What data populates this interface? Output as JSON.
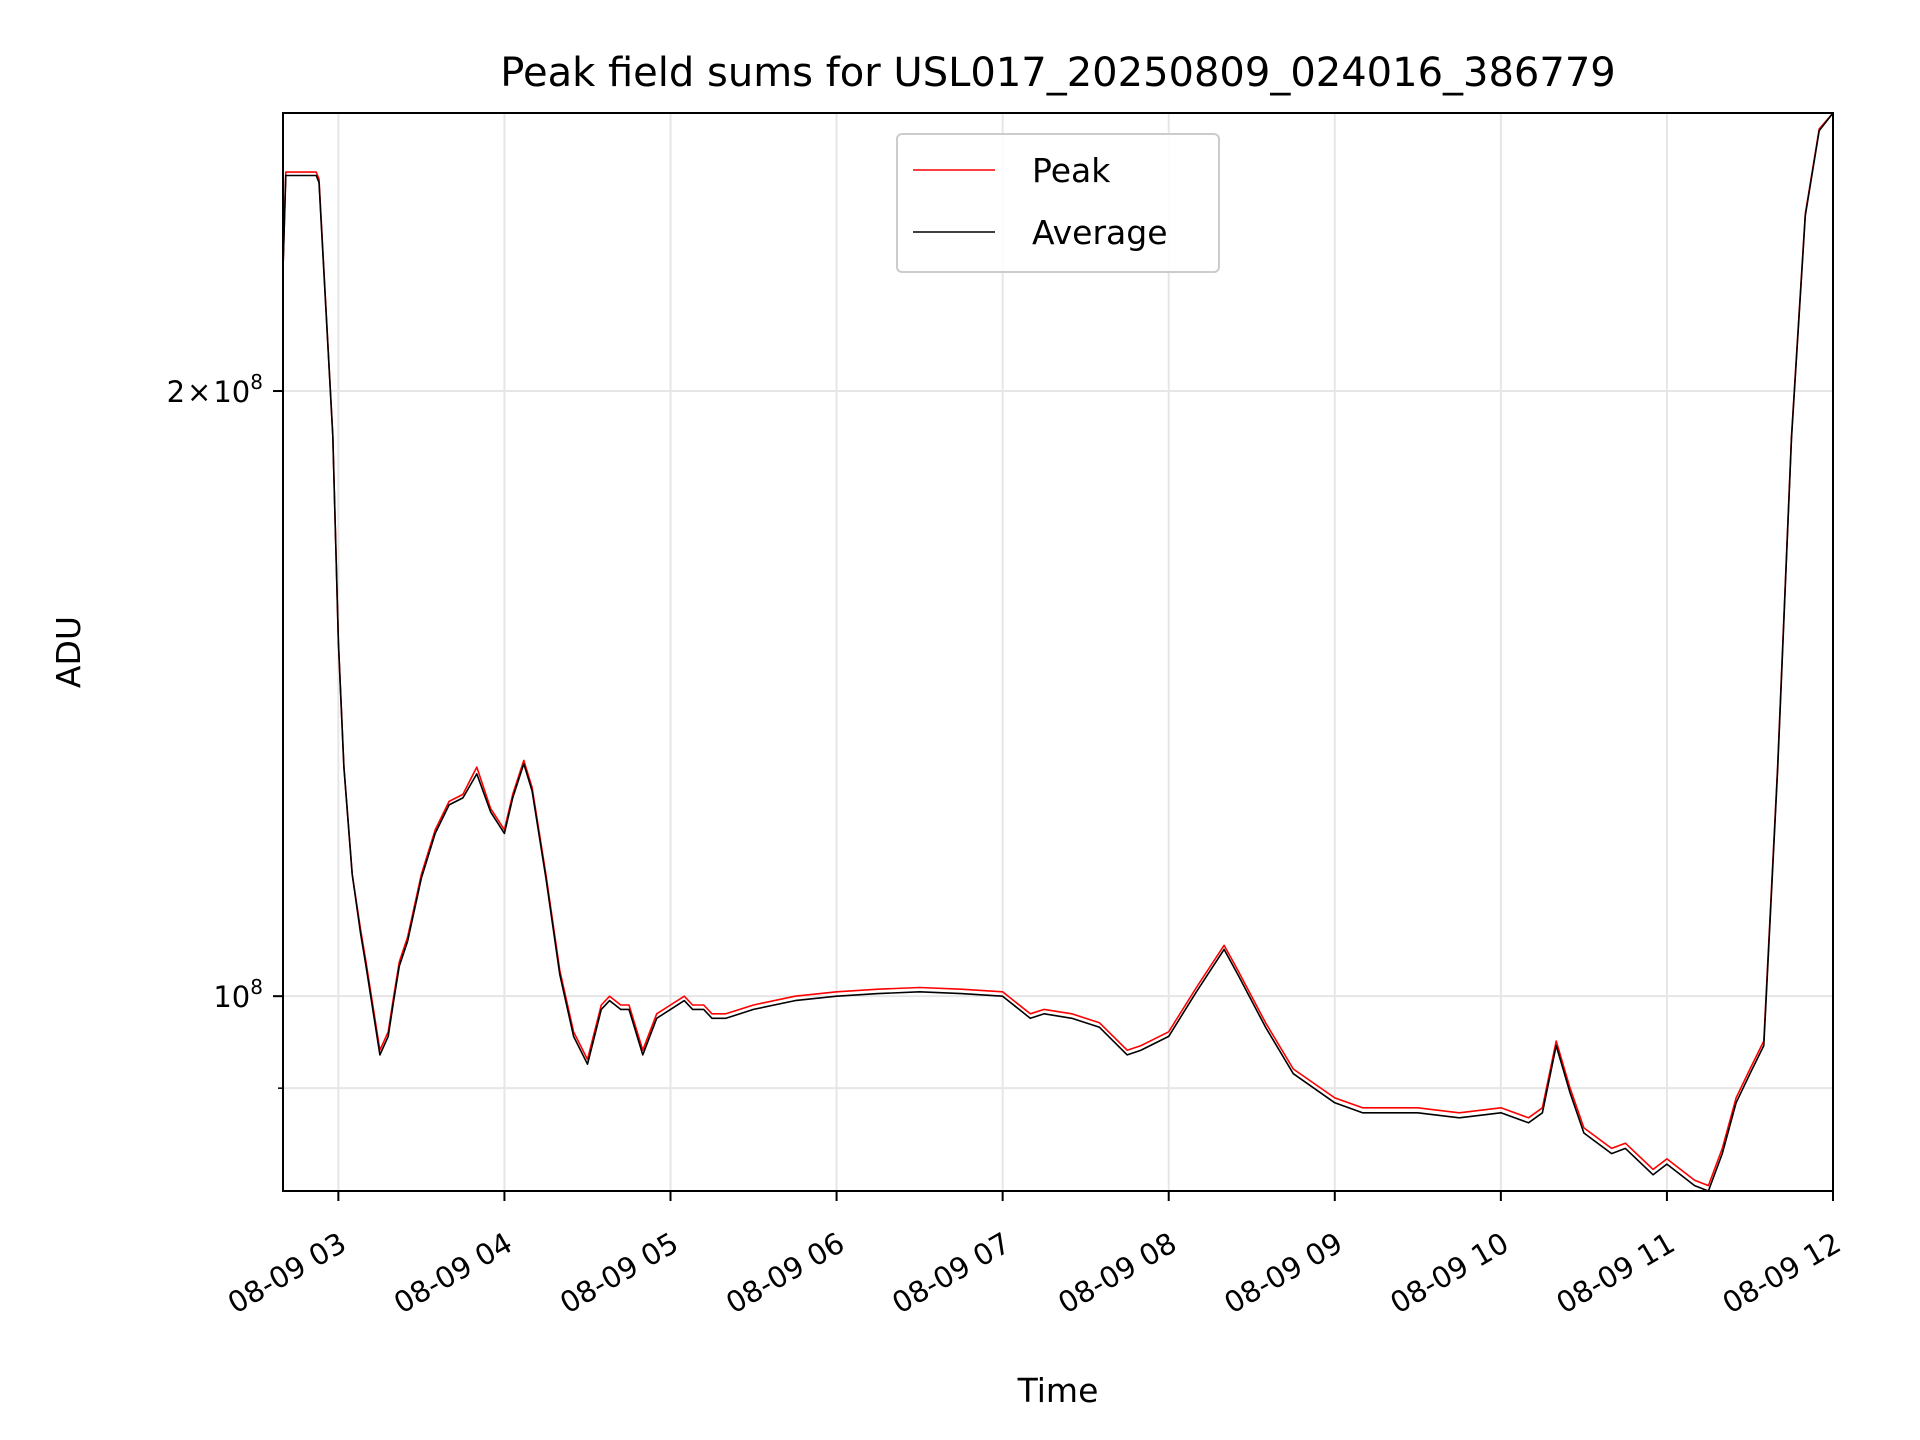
{
  "chart_data": {
    "type": "line",
    "title": "Peak field sums for USL017_20250809_024016_386779",
    "xlabel": "Time",
    "ylabel": "ADU",
    "y_scale": "log",
    "ylim": [
      80000000,
      275000000
    ],
    "xlim": [
      "08-09 02:40",
      "08-09 12:00"
    ],
    "x_ticks": [
      "08-09 03",
      "08-09 04",
      "08-09 05",
      "08-09 06",
      "08-09 07",
      "08-09 08",
      "08-09 09",
      "08-09 10",
      "08-09 11",
      "08-09 12"
    ],
    "y_tick_labels": [
      "10",
      "8",
      "2",
      "×",
      "10",
      "8"
    ],
    "grid": true,
    "legend_position": "top-center",
    "colors": {
      "peak": "#ff0000",
      "average": "#000000"
    },
    "x": [
      "08-09 02:40",
      "08-09 02:41",
      "08-09 02:52",
      "08-09 02:53",
      "08-09 02:58",
      "08-09 03:00",
      "08-09 03:02",
      "08-09 03:05",
      "08-09 03:08",
      "08-09 03:10",
      "08-09 03:15",
      "08-09 03:18",
      "08-09 03:20",
      "08-09 03:22",
      "08-09 03:25",
      "08-09 03:30",
      "08-09 03:35",
      "08-09 03:40",
      "08-09 03:45",
      "08-09 03:50",
      "08-09 03:55",
      "08-09 04:00",
      "08-09 04:03",
      "08-09 04:07",
      "08-09 04:10",
      "08-09 04:15",
      "08-09 04:20",
      "08-09 04:25",
      "08-09 04:30",
      "08-09 04:35",
      "08-09 04:38",
      "08-09 04:42",
      "08-09 04:45",
      "08-09 04:50",
      "08-09 04:55",
      "08-09 05:00",
      "08-09 05:05",
      "08-09 05:08",
      "08-09 05:12",
      "08-09 05:15",
      "08-09 05:20",
      "08-09 05:30",
      "08-09 05:45",
      "08-09 06:00",
      "08-09 06:15",
      "08-09 06:30",
      "08-09 06:45",
      "08-09 07:00",
      "08-09 07:10",
      "08-09 07:15",
      "08-09 07:25",
      "08-09 07:35",
      "08-09 07:45",
      "08-09 07:50",
      "08-09 08:00",
      "08-09 08:10",
      "08-09 08:20",
      "08-09 08:25",
      "08-09 08:35",
      "08-09 08:45",
      "08-09 09:00",
      "08-09 09:10",
      "08-09 09:20",
      "08-09 09:30",
      "08-09 09:45",
      "08-09 10:00",
      "08-09 10:10",
      "08-09 10:15",
      "08-09 10:20",
      "08-09 10:25",
      "08-09 10:30",
      "08-09 10:40",
      "08-09 10:45",
      "08-09 10:55",
      "08-09 11:00",
      "08-09 11:10",
      "08-09 11:15",
      "08-09 11:20",
      "08-09 11:25",
      "08-09 11:30",
      "08-09 11:35",
      "08-09 11:40",
      "08-09 11:45",
      "08-09 11:50",
      "08-09 11:55",
      "08-09 12:00"
    ],
    "series": [
      {
        "name": "Peak",
        "values": [
          230000000,
          257000000,
          257000000,
          255000000,
          190000000,
          150000000,
          130000000,
          115000000,
          108000000,
          104000000,
          94000000,
          96000000,
          100000000,
          104000000,
          107000000,
          115000000,
          121000000,
          125000000,
          126000000,
          130000000,
          124000000,
          121000000,
          126000000,
          131000000,
          127000000,
          115000000,
          103000000,
          96000000,
          93000000,
          99000000,
          100000000,
          99000000,
          99000000,
          94000000,
          98000000,
          99000000,
          100000000,
          99000000,
          99000000,
          98000000,
          98000000,
          99000000,
          100000000,
          100500000,
          100800000,
          101000000,
          100800000,
          100500000,
          98000000,
          98500000,
          98000000,
          97000000,
          94000000,
          94500000,
          96000000,
          101000000,
          106000000,
          103000000,
          97000000,
          92000000,
          89000000,
          88000000,
          88000000,
          88000000,
          87500000,
          88000000,
          87000000,
          88000000,
          95000000,
          90000000,
          86000000,
          84000000,
          84500000,
          82000000,
          83000000,
          81000000,
          80500000,
          84000000,
          89000000,
          92000000,
          95000000,
          130000000,
          190000000,
          245000000,
          270000000,
          275000000
        ]
      },
      {
        "name": "Average",
        "values": [
          230000000,
          256000000,
          256000000,
          254000000,
          190000000,
          150000000,
          130000000,
          115000000,
          107500000,
          103500000,
          93500000,
          95500000,
          99500000,
          103500000,
          106500000,
          114500000,
          120500000,
          124500000,
          125500000,
          129000000,
          123500000,
          120500000,
          125500000,
          130500000,
          126500000,
          114500000,
          102500000,
          95500000,
          92500000,
          98500000,
          99500000,
          98500000,
          98500000,
          93500000,
          97500000,
          98500000,
          99500000,
          98500000,
          98500000,
          97500000,
          97500000,
          98500000,
          99500000,
          100000000,
          100300000,
          100500000,
          100300000,
          100000000,
          97500000,
          98000000,
          97500000,
          96500000,
          93500000,
          94000000,
          95500000,
          100500000,
          105500000,
          102500000,
          96500000,
          91500000,
          88500000,
          87500000,
          87500000,
          87500000,
          87000000,
          87500000,
          86500000,
          87500000,
          94500000,
          89500000,
          85500000,
          83500000,
          84000000,
          81500000,
          82500000,
          80500000,
          80000000,
          83500000,
          88500000,
          91500000,
          94500000,
          129500000,
          189500000,
          244500000,
          269500000,
          275000000
        ]
      }
    ]
  }
}
